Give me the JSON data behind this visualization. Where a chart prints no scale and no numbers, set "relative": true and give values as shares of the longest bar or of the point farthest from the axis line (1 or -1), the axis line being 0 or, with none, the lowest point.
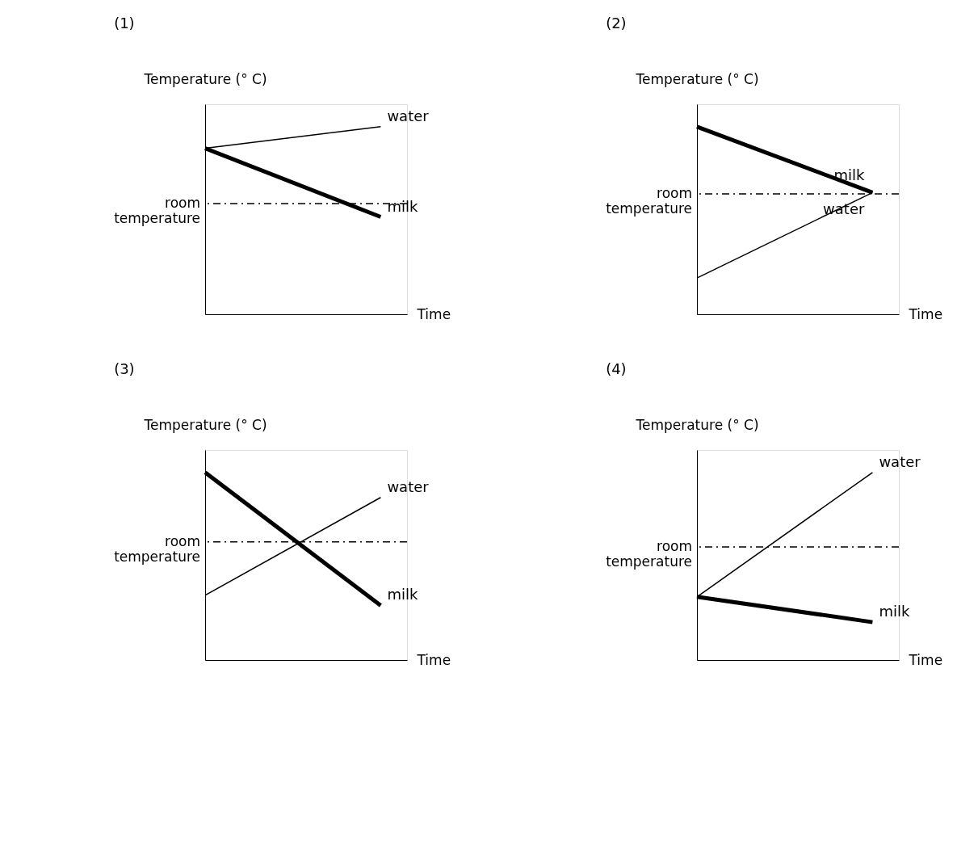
{
  "chart_data": [
    {
      "type": "line",
      "title": "(1)",
      "ylabel": "Temperature (° C)",
      "xlabel": "Time",
      "relative": true,
      "categories": [
        null,
        null
      ],
      "legend": false,
      "tick_labels": false,
      "series": [
        {
          "name": "water",
          "color": "#000000",
          "values": [
            0.885,
            1
          ]
        },
        {
          "name": "milk",
          "color": "#000000",
          "values": [
            0.885,
            0.519
          ]
        }
      ],
      "ref_lines": [
        {
          "axis": "y",
          "value": 0.59,
          "label": "room temperature",
          "line_style": "dashed"
        }
      ]
    },
    {
      "type": "line",
      "title": "(2)",
      "ylabel": "Temperature (° C)",
      "xlabel": "Time",
      "relative": true,
      "categories": [
        null,
        null
      ],
      "legend": false,
      "tick_labels": false,
      "series": [
        {
          "name": "water",
          "color": "#000000",
          "values": [
            0.193,
            0.649
          ]
        },
        {
          "name": "milk",
          "color": "#000000",
          "values": [
            1,
            0.649
          ]
        }
      ],
      "ref_lines": [
        {
          "axis": "y",
          "value": 0.642,
          "label": "room temperature",
          "line_style": "dashed"
        }
      ]
    },
    {
      "type": "line",
      "title": "(3)",
      "ylabel": "Temperature (° C)",
      "xlabel": "Time",
      "relative": true,
      "categories": [
        null,
        null
      ],
      "legend": false,
      "tick_labels": false,
      "series": [
        {
          "name": "water",
          "color": "#000000",
          "values": [
            0.345,
            0.867
          ]
        },
        {
          "name": "milk",
          "color": "#000000",
          "values": [
            1,
            0.291
          ]
        }
      ],
      "ref_lines": [
        {
          "axis": "y",
          "value": 0.63,
          "label": "room temperature",
          "line_style": "dashed"
        }
      ]
    },
    {
      "type": "line",
      "title": "(4)",
      "ylabel": "Temperature (° C)",
      "xlabel": "Time",
      "relative": true,
      "categories": [
        null,
        null
      ],
      "legend": false,
      "tick_labels": false,
      "series": [
        {
          "name": "water",
          "color": "#000000",
          "values": [
            0.337,
            1
          ]
        },
        {
          "name": "milk",
          "color": "#000000",
          "values": [
            0.337,
            0.202
          ]
        }
      ],
      "ref_lines": [
        {
          "axis": "y",
          "value": 0.603,
          "label": "room temperature",
          "line_style": "dashed"
        }
      ]
    }
  ]
}
